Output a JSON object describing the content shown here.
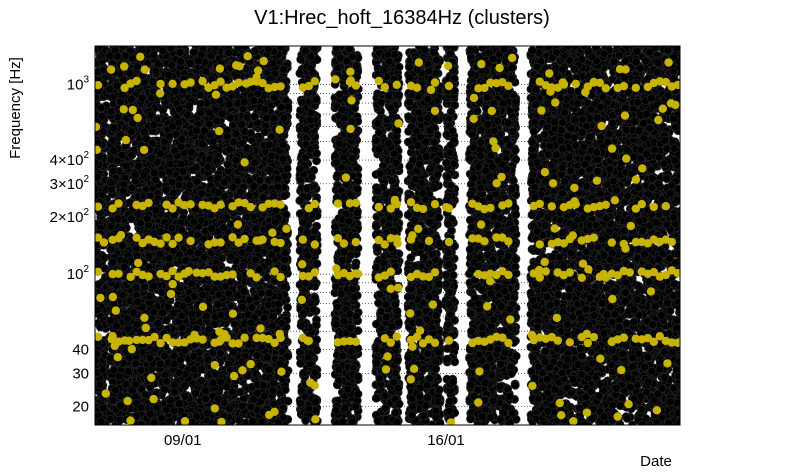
{
  "chart_data": {
    "type": "scatter",
    "title": "V1:Hrec_hoft_16384Hz (clusters)",
    "xlabel": "Date",
    "ylabel": "Frequency [Hz]",
    "y_scale": "log",
    "ylim": [
      16,
      1600
    ],
    "x_ticks": [
      {
        "label": "09/01",
        "value": 0.15
      },
      {
        "label": "16/01",
        "value": 0.6
      }
    ],
    "y_ticks": [
      {
        "label": "20",
        "value": 20
      },
      {
        "label": "30",
        "value": 30
      },
      {
        "label": "40",
        "value": 40
      },
      {
        "label": "10",
        "exp": "2",
        "value": 100
      },
      {
        "label": "2×10",
        "exp": "2",
        "value": 200
      },
      {
        "label": "3×10",
        "exp": "2",
        "value": 300
      },
      {
        "label": "4×10",
        "exp": "2",
        "value": 400
      },
      {
        "label": "10",
        "exp": "3",
        "value": 1000
      }
    ],
    "grid": "dotted horizontal",
    "series": [
      {
        "marker": "open-circle",
        "color": "#000000"
      },
      {
        "marker": "filled-circle",
        "color": "#c8b400"
      }
    ],
    "data_segments": [
      [
        0.0,
        0.02
      ],
      [
        0.025,
        0.33
      ],
      [
        0.35,
        0.38
      ],
      [
        0.41,
        0.45
      ],
      [
        0.48,
        0.52
      ],
      [
        0.535,
        0.59
      ],
      [
        0.6,
        0.615
      ],
      [
        0.625,
        0.62
      ],
      [
        0.64,
        0.72
      ],
      [
        0.745,
        1.0
      ]
    ],
    "highlight_bands": [
      45,
      100,
      150,
      230,
      1000
    ]
  }
}
